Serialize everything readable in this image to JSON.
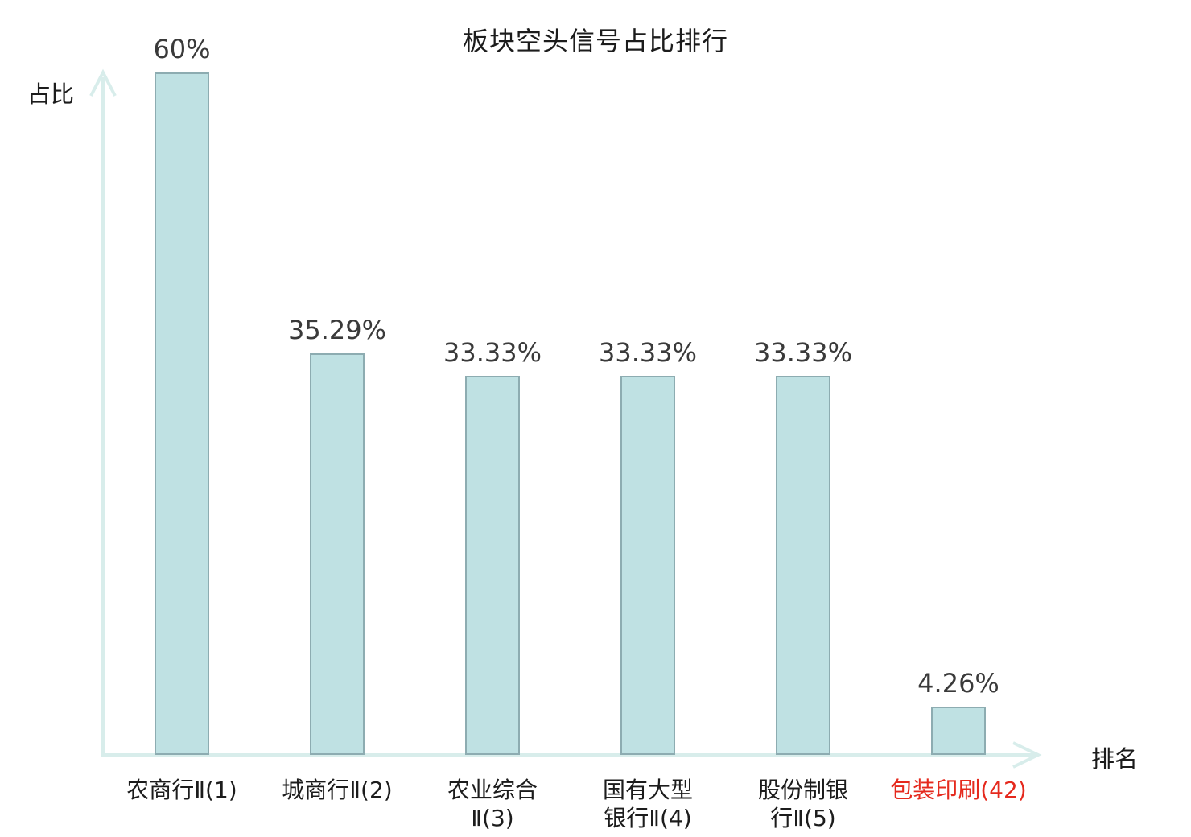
{
  "title": "板块空头信号占比排行",
  "colors": {
    "bar_fill": "#bfe1e3",
    "bar_border": "#8dacb1",
    "axis": "#d8edeb",
    "value_text": "#3a3a3a",
    "label_text": "#1c1c1c",
    "highlight_text": "#e5291d",
    "background": "#ffffff"
  },
  "chart_data": {
    "type": "bar",
    "title": "板块空头信号占比排行",
    "xlabel": "排名",
    "ylabel": "占比",
    "categories": [
      "农商行Ⅱ(1)",
      "城商行Ⅱ(2)",
      "农业综合\nⅡ(3)",
      "国有大型\n银行Ⅱ(4)",
      "股份制银\n行Ⅱ(5)",
      "包装印刷(42)"
    ],
    "values": [
      60,
      35.29,
      33.33,
      33.33,
      33.33,
      4.26
    ],
    "value_labels": [
      "60%",
      "35.29%",
      "33.33%",
      "33.33%",
      "33.33%",
      "4.26%"
    ],
    "highlight_index": 5,
    "ylim": [
      0,
      60
    ],
    "grid": false,
    "legend": false,
    "axis_arrows": true
  }
}
